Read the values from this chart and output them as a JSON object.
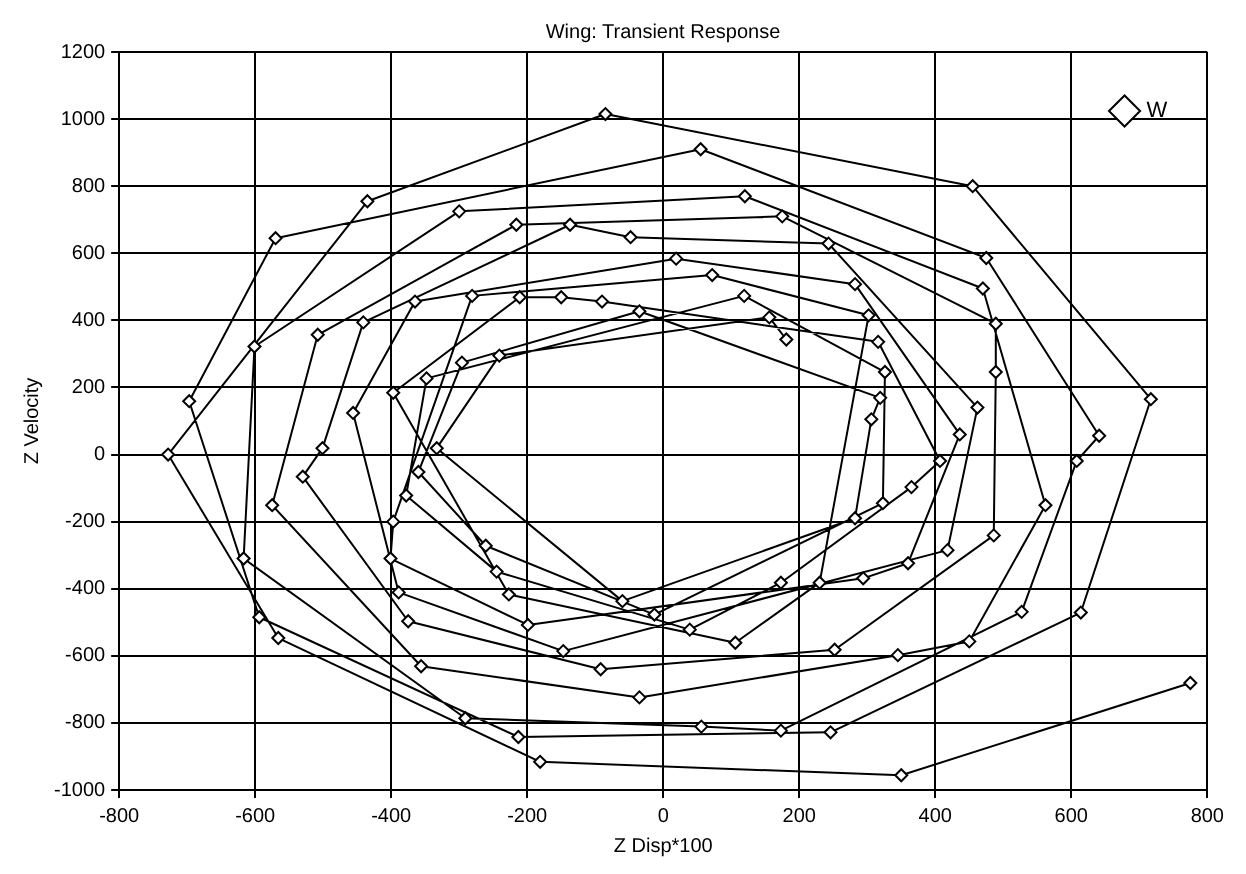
{
  "chart_data": {
    "type": "line",
    "title": "Wing: Transient Response",
    "xlabel": "Z Disp*100",
    "ylabel": "Z Velocity",
    "xlim": [
      -800,
      800
    ],
    "xticks": [
      -800,
      -600,
      -400,
      -200,
      0,
      200,
      400,
      600,
      800
    ],
    "ylim": [
      -1000,
      1200
    ],
    "yticks": [
      -1000,
      -800,
      -600,
      -400,
      -200,
      0,
      200,
      400,
      600,
      800,
      1000,
      1200
    ],
    "grid": true,
    "legend": "top right",
    "marker": "diamond",
    "line_style": "solid",
    "series": [
      {
        "name": "W",
        "color": "#000000",
        "x": [
          775,
          350,
          -181,
          -566,
          -728,
          -435,
          -85,
          455,
          717,
          614,
          246,
          -213,
          -594,
          -697,
          -570,
          55,
          475,
          641,
          608,
          527,
          173,
          56,
          -291,
          -617,
          -601,
          -300,
          120,
          470,
          562,
          450,
          345,
          -35,
          -356,
          -575,
          -508,
          -216,
          175,
          489,
          489,
          486,
          252,
          -92,
          -375,
          -530,
          -501,
          -441,
          -137,
          -48,
          243,
          462,
          418,
          -147,
          -389,
          -456,
          -365,
          19,
          282,
          436,
          360,
          294,
          -199,
          -401,
          -397,
          -281,
          72,
          302,
          230,
          106,
          -227,
          -397,
          -211,
          -150,
          -90,
          316,
          407,
          365,
          173,
          39,
          -245,
          -378,
          -348,
          119,
          326,
          323,
          -13,
          -261,
          -360,
          -296,
          -35,
          319,
          306,
          282,
          -60,
          -333,
          -241,
          156,
          181
        ],
        "values": [
          -681,
          -956,
          -916,
          -547,
          0,
          755,
          1015,
          800,
          165,
          -471,
          -828,
          -842,
          -485,
          159,
          645,
          910,
          586,
          56,
          -19,
          -469,
          -823,
          -811,
          -786,
          -310,
          322,
          725,
          770,
          495,
          -151,
          -557,
          -598,
          -724,
          -631,
          -151,
          357,
          685,
          710,
          390,
          246,
          -241,
          -582,
          -640,
          -497,
          -66,
          19,
          394,
          685,
          648,
          629,
          140,
          -285,
          -586,
          -411,
          124,
          456,
          584,
          508,
          60,
          -324,
          -369,
          -508,
          -310,
          -200,
          473,
          535,
          415,
          -382,
          -561,
          -417,
          184,
          469,
          469,
          456,
          336,
          -19,
          -97,
          -382,
          -522,
          -349,
          -122,
          227,
          473,
          246,
          -145,
          -477,
          -272,
          -52,
          274,
          427,
          169,
          105,
          -190,
          -437,
          19,
          295,
          409,
          343
        ]
      }
    ]
  }
}
